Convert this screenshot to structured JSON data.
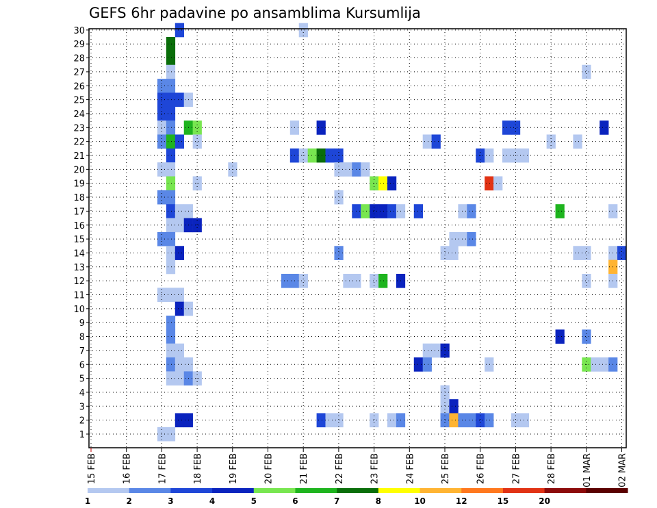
{
  "chart_data": {
    "type": "heatmap",
    "title": "GEFS 6hr padavine po ansamblima Kursumlija",
    "y_ticks": [
      "1",
      "2",
      "3",
      "4",
      "5",
      "6",
      "7",
      "8",
      "9",
      "10",
      "11",
      "12",
      "13",
      "14",
      "15",
      "16",
      "17",
      "18",
      "19",
      "20",
      "21",
      "22",
      "23",
      "24",
      "25",
      "26",
      "27",
      "28",
      "29",
      "30"
    ],
    "x_ticks": [
      "15 FEB",
      "16 FEB",
      "17 FEB",
      "18 FEB",
      "19 FEB",
      "20 FEB",
      "21 FEB",
      "22 FEB",
      "23 FEB",
      "24 FEB",
      "25 FEB",
      "26 FEB",
      "27 FEB",
      "28 FEB",
      "01 MAR",
      "02 MAR"
    ],
    "x_unit": "day offset from 15 FEB, 0.25 day steps",
    "legend": {
      "labels": [
        "1",
        "2",
        "3",
        "4",
        "5",
        "6",
        "7",
        "8",
        "10",
        "12",
        "15",
        "20"
      ],
      "colors": [
        "#b4c8f0",
        "#5a87e6",
        "#1e46d7",
        "#0a23be",
        "#78e650",
        "#1eb41e",
        "#0a6e0a",
        "#ffff00",
        "#ffb432",
        "#ff781e",
        "#e13214",
        "#8c0a0a",
        "#5a0000"
      ]
    },
    "cells": [
      {
        "member": 30,
        "t": 2.5,
        "v": 3
      },
      {
        "member": 30,
        "t": 6.0,
        "v": 1
      },
      {
        "member": 29,
        "t": 2.25,
        "v": 7
      },
      {
        "member": 28,
        "t": 2.25,
        "v": 7
      },
      {
        "member": 27,
        "t": 2.25,
        "v": 1
      },
      {
        "member": 27,
        "t": 14.0,
        "v": 1
      },
      {
        "member": 26,
        "t": 2.0,
        "v": 2
      },
      {
        "member": 26,
        "t": 2.25,
        "v": 2
      },
      {
        "member": 25,
        "t": 2.0,
        "v": 3
      },
      {
        "member": 25,
        "t": 2.25,
        "v": 3
      },
      {
        "member": 25,
        "t": 2.5,
        "v": 3
      },
      {
        "member": 25,
        "t": 2.75,
        "v": 1
      },
      {
        "member": 24,
        "t": 2.0,
        "v": 3
      },
      {
        "member": 24,
        "t": 2.25,
        "v": 3
      },
      {
        "member": 23,
        "t": 2.0,
        "v": 1
      },
      {
        "member": 23,
        "t": 2.25,
        "v": 2
      },
      {
        "member": 23,
        "t": 2.75,
        "v": 6
      },
      {
        "member": 23,
        "t": 3.0,
        "v": 5
      },
      {
        "member": 23,
        "t": 5.75,
        "v": 1
      },
      {
        "member": 23,
        "t": 6.5,
        "v": 4
      },
      {
        "member": 23,
        "t": 11.75,
        "v": 3
      },
      {
        "member": 23,
        "t": 12.0,
        "v": 3
      },
      {
        "member": 23,
        "t": 14.5,
        "v": 4
      },
      {
        "member": 22,
        "t": 2.0,
        "v": 2
      },
      {
        "member": 22,
        "t": 2.25,
        "v": 6
      },
      {
        "member": 22,
        "t": 2.5,
        "v": 3
      },
      {
        "member": 22,
        "t": 3.0,
        "v": 1
      },
      {
        "member": 22,
        "t": 9.5,
        "v": 1
      },
      {
        "member": 22,
        "t": 9.75,
        "v": 3
      },
      {
        "member": 22,
        "t": 13.0,
        "v": 1
      },
      {
        "member": 22,
        "t": 13.75,
        "v": 1
      },
      {
        "member": 21,
        "t": 2.25,
        "v": 3
      },
      {
        "member": 21,
        "t": 5.75,
        "v": 3
      },
      {
        "member": 21,
        "t": 6.0,
        "v": 1
      },
      {
        "member": 21,
        "t": 6.25,
        "v": 5
      },
      {
        "member": 21,
        "t": 6.5,
        "v": 7
      },
      {
        "member": 21,
        "t": 6.75,
        "v": 3
      },
      {
        "member": 21,
        "t": 7.0,
        "v": 3
      },
      {
        "member": 21,
        "t": 11.0,
        "v": 3
      },
      {
        "member": 21,
        "t": 11.25,
        "v": 1
      },
      {
        "member": 21,
        "t": 11.75,
        "v": 1
      },
      {
        "member": 21,
        "t": 12.0,
        "v": 1
      },
      {
        "member": 21,
        "t": 12.25,
        "v": 1
      },
      {
        "member": 20,
        "t": 2.0,
        "v": 1
      },
      {
        "member": 20,
        "t": 2.25,
        "v": 1
      },
      {
        "member": 20,
        "t": 4.0,
        "v": 1
      },
      {
        "member": 20,
        "t": 7.0,
        "v": 1
      },
      {
        "member": 20,
        "t": 7.25,
        "v": 1
      },
      {
        "member": 20,
        "t": 7.5,
        "v": 2
      },
      {
        "member": 20,
        "t": 7.75,
        "v": 1
      },
      {
        "member": 19,
        "t": 2.25,
        "v": 5
      },
      {
        "member": 19,
        "t": 3.0,
        "v": 1
      },
      {
        "member": 19,
        "t": 8.0,
        "v": 5
      },
      {
        "member": 19,
        "t": 8.25,
        "v": 8
      },
      {
        "member": 19,
        "t": 8.5,
        "v": 4
      },
      {
        "member": 19,
        "t": 11.25,
        "v": 15
      },
      {
        "member": 19,
        "t": 11.5,
        "v": 1
      },
      {
        "member": 18,
        "t": 2.0,
        "v": 2
      },
      {
        "member": 18,
        "t": 2.25,
        "v": 2
      },
      {
        "member": 18,
        "t": 7.0,
        "v": 1
      },
      {
        "member": 17,
        "t": 2.25,
        "v": 3
      },
      {
        "member": 17,
        "t": 2.5,
        "v": 1
      },
      {
        "member": 17,
        "t": 2.75,
        "v": 1
      },
      {
        "member": 17,
        "t": 7.5,
        "v": 3
      },
      {
        "member": 17,
        "t": 7.75,
        "v": 5
      },
      {
        "member": 17,
        "t": 8.0,
        "v": 4
      },
      {
        "member": 17,
        "t": 8.25,
        "v": 4
      },
      {
        "member": 17,
        "t": 8.5,
        "v": 3
      },
      {
        "member": 17,
        "t": 8.75,
        "v": 1
      },
      {
        "member": 17,
        "t": 9.25,
        "v": 3
      },
      {
        "member": 17,
        "t": 10.5,
        "v": 1
      },
      {
        "member": 17,
        "t": 10.75,
        "v": 2
      },
      {
        "member": 17,
        "t": 13.25,
        "v": 6
      },
      {
        "member": 17,
        "t": 14.75,
        "v": 1
      },
      {
        "member": 16,
        "t": 2.25,
        "v": 1
      },
      {
        "member": 16,
        "t": 2.5,
        "v": 1
      },
      {
        "member": 16,
        "t": 2.75,
        "v": 4
      },
      {
        "member": 16,
        "t": 3.0,
        "v": 4
      },
      {
        "member": 15,
        "t": 2.0,
        "v": 2
      },
      {
        "member": 15,
        "t": 2.25,
        "v": 2
      },
      {
        "member": 15,
        "t": 10.25,
        "v": 1
      },
      {
        "member": 15,
        "t": 10.5,
        "v": 1
      },
      {
        "member": 15,
        "t": 10.75,
        "v": 2
      },
      {
        "member": 14,
        "t": 2.25,
        "v": 1
      },
      {
        "member": 14,
        "t": 2.5,
        "v": 4
      },
      {
        "member": 14,
        "t": 7.0,
        "v": 2
      },
      {
        "member": 14,
        "t": 10.0,
        "v": 1
      },
      {
        "member": 14,
        "t": 10.25,
        "v": 1
      },
      {
        "member": 14,
        "t": 13.75,
        "v": 1
      },
      {
        "member": 14,
        "t": 14.0,
        "v": 1
      },
      {
        "member": 14,
        "t": 14.75,
        "v": 1
      },
      {
        "member": 14,
        "t": 15.0,
        "v": 3
      },
      {
        "member": 13,
        "t": 2.25,
        "v": 1
      },
      {
        "member": 13,
        "t": 14.75,
        "v": 10
      },
      {
        "member": 12,
        "t": 5.5,
        "v": 2
      },
      {
        "member": 12,
        "t": 5.75,
        "v": 2
      },
      {
        "member": 12,
        "t": 6.0,
        "v": 1
      },
      {
        "member": 12,
        "t": 7.25,
        "v": 1
      },
      {
        "member": 12,
        "t": 7.5,
        "v": 1
      },
      {
        "member": 12,
        "t": 8.0,
        "v": 1
      },
      {
        "member": 12,
        "t": 8.25,
        "v": 6
      },
      {
        "member": 12,
        "t": 8.75,
        "v": 4
      },
      {
        "member": 12,
        "t": 14.0,
        "v": 1
      },
      {
        "member": 12,
        "t": 14.75,
        "v": 1
      },
      {
        "member": 11,
        "t": 2.0,
        "v": 1
      },
      {
        "member": 11,
        "t": 2.25,
        "v": 1
      },
      {
        "member": 11,
        "t": 2.5,
        "v": 1
      },
      {
        "member": 10,
        "t": 2.5,
        "v": 4
      },
      {
        "member": 10,
        "t": 2.75,
        "v": 1
      },
      {
        "member": 9,
        "t": 2.25,
        "v": 2
      },
      {
        "member": 8,
        "t": 2.25,
        "v": 2
      },
      {
        "member": 8,
        "t": 13.25,
        "v": 4
      },
      {
        "member": 8,
        "t": 14.0,
        "v": 2
      },
      {
        "member": 7,
        "t": 2.25,
        "v": 1
      },
      {
        "member": 7,
        "t": 2.5,
        "v": 1
      },
      {
        "member": 7,
        "t": 9.5,
        "v": 1
      },
      {
        "member": 7,
        "t": 9.75,
        "v": 1
      },
      {
        "member": 7,
        "t": 10.0,
        "v": 4
      },
      {
        "member": 6,
        "t": 2.25,
        "v": 2
      },
      {
        "member": 6,
        "t": 2.5,
        "v": 1
      },
      {
        "member": 6,
        "t": 2.75,
        "v": 1
      },
      {
        "member": 6,
        "t": 9.25,
        "v": 4
      },
      {
        "member": 6,
        "t": 9.5,
        "v": 2
      },
      {
        "member": 6,
        "t": 11.25,
        "v": 1
      },
      {
        "member": 6,
        "t": 14.0,
        "v": 5
      },
      {
        "member": 6,
        "t": 14.25,
        "v": 1
      },
      {
        "member": 6,
        "t": 14.5,
        "v": 1
      },
      {
        "member": 6,
        "t": 14.75,
        "v": 2
      },
      {
        "member": 5,
        "t": 2.25,
        "v": 1
      },
      {
        "member": 5,
        "t": 2.5,
        "v": 1
      },
      {
        "member": 5,
        "t": 2.75,
        "v": 2
      },
      {
        "member": 5,
        "t": 3.0,
        "v": 1
      },
      {
        "member": 4,
        "t": 10.0,
        "v": 1
      },
      {
        "member": 3,
        "t": 10.0,
        "v": 1
      },
      {
        "member": 3,
        "t": 10.25,
        "v": 4
      },
      {
        "member": 2,
        "t": 2.5,
        "v": 4
      },
      {
        "member": 2,
        "t": 2.75,
        "v": 4
      },
      {
        "member": 2,
        "t": 6.5,
        "v": 3
      },
      {
        "member": 2,
        "t": 6.75,
        "v": 1
      },
      {
        "member": 2,
        "t": 7.0,
        "v": 1
      },
      {
        "member": 2,
        "t": 8.0,
        "v": 1
      },
      {
        "member": 2,
        "t": 8.5,
        "v": 1
      },
      {
        "member": 2,
        "t": 8.75,
        "v": 2
      },
      {
        "member": 2,
        "t": 10.0,
        "v": 2
      },
      {
        "member": 2,
        "t": 10.25,
        "v": 10
      },
      {
        "member": 2,
        "t": 10.5,
        "v": 2
      },
      {
        "member": 2,
        "t": 10.75,
        "v": 2
      },
      {
        "member": 2,
        "t": 11.0,
        "v": 3
      },
      {
        "member": 2,
        "t": 11.25,
        "v": 2
      },
      {
        "member": 2,
        "t": 12.0,
        "v": 1
      },
      {
        "member": 2,
        "t": 12.25,
        "v": 1
      },
      {
        "member": 1,
        "t": 2.0,
        "v": 1
      },
      {
        "member": 1,
        "t": 2.25,
        "v": 1
      }
    ]
  }
}
